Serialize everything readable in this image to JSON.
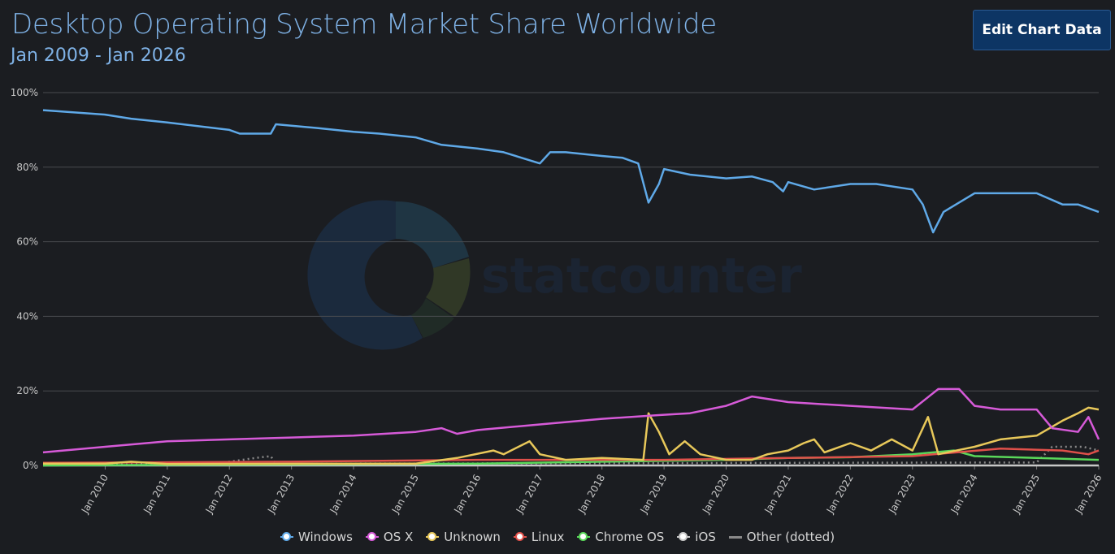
{
  "header": {
    "title": "Desktop Operating System Market Share Worldwide",
    "subtitle": "Jan 2009 - Jan 2026",
    "edit_button": "Edit Chart Data"
  },
  "watermark": {
    "text": "statcounter"
  },
  "chart_data": {
    "type": "line",
    "x_start": "2009-01",
    "x_end": "2026-01",
    "x_ticks": [
      "Jan 2010",
      "Jan 2011",
      "Jan 2012",
      "Jan 2013",
      "Jan 2014",
      "Jan 2015",
      "Jan 2016",
      "Jan 2017",
      "Jan 2018",
      "Jan 2019",
      "Jan 2020",
      "Jan 2021",
      "Jan 2022",
      "Jan 2023",
      "Jan 2024",
      "Jan 2025",
      "Jan 2026"
    ],
    "y_ticks": [
      "0%",
      "20%",
      "40%",
      "60%",
      "80%",
      "100%"
    ],
    "ylim": [
      0,
      100
    ],
    "grid": true,
    "legend_position": "bottom",
    "series": [
      {
        "name": "Windows",
        "color": "#5fa9e8",
        "marker": true,
        "points": [
          [
            "2009-01",
            95.3
          ],
          [
            "2010-01",
            94.1
          ],
          [
            "2010-06",
            93
          ],
          [
            "2011-01",
            92
          ],
          [
            "2012-01",
            90
          ],
          [
            "2012-03",
            89
          ],
          [
            "2012-09",
            89
          ],
          [
            "2012-10",
            91.5
          ],
          [
            "2013-06",
            90.5
          ],
          [
            "2014-01",
            89.5
          ],
          [
            "2014-06",
            89
          ],
          [
            "2015-01",
            88
          ],
          [
            "2015-06",
            86
          ],
          [
            "2016-01",
            85
          ],
          [
            "2016-06",
            84
          ],
          [
            "2017-01",
            81
          ],
          [
            "2017-03",
            84
          ],
          [
            "2017-06",
            84
          ],
          [
            "2018-01",
            83
          ],
          [
            "2018-05",
            82.5
          ],
          [
            "2018-08",
            81
          ],
          [
            "2018-10",
            70.5
          ],
          [
            "2018-12",
            75.5
          ],
          [
            "2019-01",
            79.5
          ],
          [
            "2019-06",
            78
          ],
          [
            "2020-01",
            77
          ],
          [
            "2020-06",
            77.5
          ],
          [
            "2020-10",
            76
          ],
          [
            "2020-12",
            73.5
          ],
          [
            "2021-01",
            76
          ],
          [
            "2021-06",
            74
          ],
          [
            "2022-01",
            75.5
          ],
          [
            "2022-06",
            75.5
          ],
          [
            "2023-01",
            74
          ],
          [
            "2023-03",
            70
          ],
          [
            "2023-05",
            62.5
          ],
          [
            "2023-07",
            68
          ],
          [
            "2024-01",
            73
          ],
          [
            "2024-06",
            73
          ],
          [
            "2025-01",
            73
          ],
          [
            "2025-06",
            70
          ],
          [
            "2025-09",
            70
          ],
          [
            "2026-01",
            68
          ]
        ]
      },
      {
        "name": "OS X",
        "color": "#d65ad8",
        "marker": true,
        "points": [
          [
            "2009-01",
            3.5
          ],
          [
            "2010-01",
            5
          ],
          [
            "2011-01",
            6.5
          ],
          [
            "2012-01",
            7
          ],
          [
            "2013-01",
            7.5
          ],
          [
            "2014-01",
            8
          ],
          [
            "2015-01",
            9
          ],
          [
            "2015-06",
            10
          ],
          [
            "2015-09",
            8.5
          ],
          [
            "2016-01",
            9.5
          ],
          [
            "2017-01",
            11
          ],
          [
            "2018-01",
            12.5
          ],
          [
            "2018-12",
            13.5
          ],
          [
            "2019-06",
            14
          ],
          [
            "2020-01",
            16
          ],
          [
            "2020-06",
            18.5
          ],
          [
            "2021-01",
            17
          ],
          [
            "2022-01",
            16
          ],
          [
            "2023-01",
            15
          ],
          [
            "2023-06",
            20.5
          ],
          [
            "2023-10",
            20.5
          ],
          [
            "2024-01",
            16
          ],
          [
            "2024-06",
            15
          ],
          [
            "2025-01",
            15
          ],
          [
            "2025-04",
            10
          ],
          [
            "2025-09",
            9
          ],
          [
            "2025-11",
            13
          ],
          [
            "2026-01",
            7
          ]
        ]
      },
      {
        "name": "Unknown",
        "color": "#e8c85a",
        "marker": true,
        "points": [
          [
            "2009-01",
            0.5
          ],
          [
            "2010-01",
            0.5
          ],
          [
            "2010-06",
            1
          ],
          [
            "2011-01",
            0.4
          ],
          [
            "2015-01",
            0.5
          ],
          [
            "2015-09",
            2
          ],
          [
            "2016-04",
            4
          ],
          [
            "2016-06",
            3
          ],
          [
            "2016-11",
            6.5
          ],
          [
            "2017-01",
            3
          ],
          [
            "2017-06",
            1.5
          ],
          [
            "2018-01",
            2
          ],
          [
            "2018-09",
            1.5
          ],
          [
            "2018-10",
            14
          ],
          [
            "2018-12",
            9
          ],
          [
            "2019-02",
            3
          ],
          [
            "2019-05",
            6.5
          ],
          [
            "2019-08",
            3
          ],
          [
            "2020-01",
            1.5
          ],
          [
            "2020-06",
            1.5
          ],
          [
            "2020-09",
            3
          ],
          [
            "2021-01",
            4
          ],
          [
            "2021-04",
            6
          ],
          [
            "2021-06",
            7
          ],
          [
            "2021-08",
            3.5
          ],
          [
            "2022-01",
            6
          ],
          [
            "2022-05",
            4
          ],
          [
            "2022-09",
            7
          ],
          [
            "2023-01",
            4
          ],
          [
            "2023-04",
            13
          ],
          [
            "2023-06",
            3
          ],
          [
            "2024-01",
            5
          ],
          [
            "2024-06",
            7
          ],
          [
            "2025-01",
            8
          ],
          [
            "2025-06",
            12
          ],
          [
            "2025-09",
            14
          ],
          [
            "2025-11",
            15.5
          ],
          [
            "2026-01",
            15
          ]
        ]
      },
      {
        "name": "Linux",
        "color": "#e0504a",
        "marker": true,
        "points": [
          [
            "2009-01",
            0.7
          ],
          [
            "2013-01",
            1
          ],
          [
            "2016-01",
            1.5
          ],
          [
            "2019-01",
            1.5
          ],
          [
            "2021-01",
            2
          ],
          [
            "2023-01",
            2.5
          ],
          [
            "2024-06",
            4.5
          ],
          [
            "2025-06",
            4
          ],
          [
            "2025-11",
            3
          ],
          [
            "2026-01",
            4
          ]
        ]
      },
      {
        "name": "Chrome OS",
        "color": "#5ad85a",
        "marker": true,
        "points": [
          [
            "2009-01",
            0
          ],
          [
            "2016-01",
            0.5
          ],
          [
            "2018-01",
            1
          ],
          [
            "2020-01",
            1.5
          ],
          [
            "2021-01",
            2
          ],
          [
            "2022-01",
            2.2
          ],
          [
            "2023-01",
            3
          ],
          [
            "2023-09",
            4
          ],
          [
            "2024-01",
            2.5
          ],
          [
            "2025-01",
            2
          ],
          [
            "2026-01",
            1.5
          ]
        ]
      },
      {
        "name": "iOS",
        "color": "#c8c8c8",
        "marker": true,
        "points": [
          [
            "2009-01",
            0
          ],
          [
            "2026-01",
            0
          ]
        ]
      },
      {
        "name": "Other (dotted)",
        "color": "#8a8a8a",
        "marker": false,
        "points": [
          [
            "2009-01",
            0.2
          ],
          [
            "2011-06",
            0.3
          ],
          [
            "2012-01",
            1
          ],
          [
            "2012-06",
            2
          ],
          [
            "2012-09",
            2.5
          ],
          [
            "2012-10",
            0.3
          ],
          [
            "2014-01",
            0.5
          ],
          [
            "2025-01",
            0.8
          ],
          [
            "2025-04",
            5
          ],
          [
            "2025-10",
            5
          ],
          [
            "2026-01",
            4
          ]
        ]
      }
    ]
  }
}
